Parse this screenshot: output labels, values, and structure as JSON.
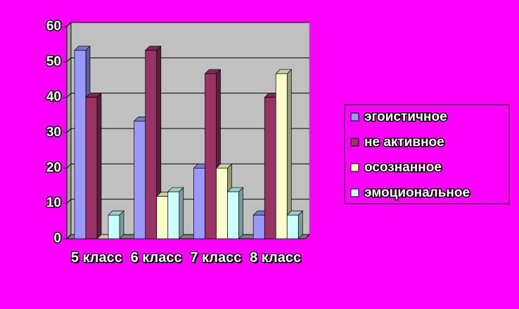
{
  "chart_data": {
    "type": "bar",
    "categories": [
      "5 класс",
      "6 класс",
      "7 класс",
      "8 класс"
    ],
    "series": [
      {
        "name": "эгоистичное",
        "color": "#9999ff",
        "values": [
          53.3,
          33.3,
          20,
          6.7
        ]
      },
      {
        "name": "не активное",
        "color": "#993366",
        "values": [
          40,
          53.3,
          46.7,
          40
        ]
      },
      {
        "name": "осознанное",
        "color": "#ffffcc",
        "values": [
          0,
          12,
          20,
          46.7
        ]
      },
      {
        "name": "эмоциональное",
        "color": "#ccffff",
        "values": [
          6.7,
          13.3,
          13.3,
          6.7
        ]
      }
    ],
    "ylim": [
      0,
      60
    ],
    "yticks": [
      0,
      10,
      20,
      30,
      40,
      50,
      60
    ],
    "grid": true,
    "legend": "right"
  }
}
